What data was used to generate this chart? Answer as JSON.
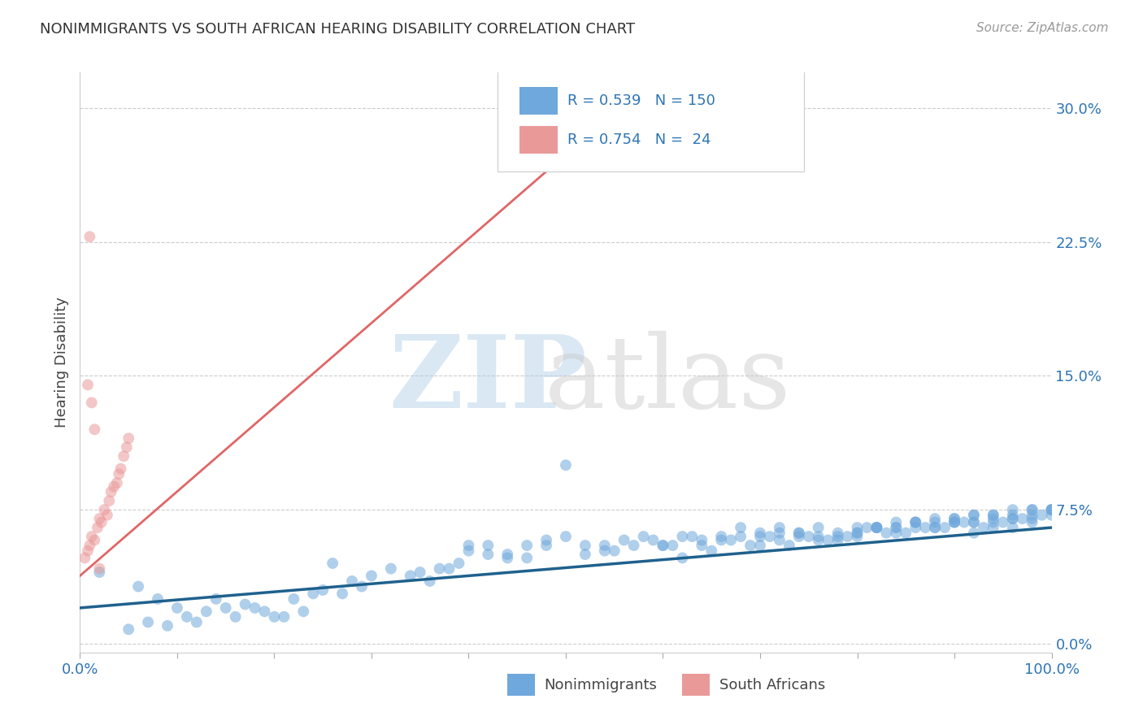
{
  "title": "NONIMMIGRANTS VS SOUTH AFRICAN HEARING DISABILITY CORRELATION CHART",
  "source": "Source: ZipAtlas.com",
  "ylabel": "Hearing Disability",
  "xmin": 0.0,
  "xmax": 1.0,
  "ymin": -0.005,
  "ymax": 0.32,
  "yticks": [
    0.0,
    0.075,
    0.15,
    0.225,
    0.3
  ],
  "ytick_labels": [
    "0.0%",
    "7.5%",
    "15.0%",
    "22.5%",
    "30.0%"
  ],
  "blue_R": 0.539,
  "blue_N": 150,
  "pink_R": 0.754,
  "pink_N": 24,
  "blue_color": "#6fa8dc",
  "pink_color": "#ea9999",
  "blue_line_color": "#1f618d",
  "pink_line_color": "#e06666",
  "axis_color": "#2e75b6",
  "legend_color": "#2e75b6",
  "blue_scatter_x": [
    0.02,
    0.06,
    0.08,
    0.1,
    0.12,
    0.14,
    0.16,
    0.18,
    0.2,
    0.22,
    0.24,
    0.26,
    0.28,
    0.3,
    0.32,
    0.34,
    0.36,
    0.38,
    0.4,
    0.42,
    0.44,
    0.46,
    0.48,
    0.5,
    0.52,
    0.54,
    0.56,
    0.58,
    0.6,
    0.62,
    0.64,
    0.66,
    0.68,
    0.7,
    0.72,
    0.74,
    0.76,
    0.78,
    0.8,
    0.82,
    0.84,
    0.86,
    0.88,
    0.9,
    0.92,
    0.94,
    0.96,
    0.98,
    1.0,
    0.5,
    0.4,
    0.42,
    0.44,
    0.46,
    0.48,
    0.52,
    0.54,
    0.35,
    0.37,
    0.39,
    0.55,
    0.57,
    0.59,
    0.61,
    0.63,
    0.65,
    0.67,
    0.69,
    0.71,
    0.73,
    0.75,
    0.77,
    0.79,
    0.81,
    0.83,
    0.85,
    0.87,
    0.89,
    0.91,
    0.93,
    0.95,
    0.97,
    0.99,
    0.6,
    0.62,
    0.64,
    0.66,
    0.68,
    0.7,
    0.72,
    0.74,
    0.76,
    0.78,
    0.8,
    0.82,
    0.84,
    0.86,
    0.88,
    0.9,
    0.92,
    0.94,
    0.96,
    0.98,
    1.0,
    0.7,
    0.72,
    0.74,
    0.76,
    0.78,
    0.8,
    0.82,
    0.84,
    0.86,
    0.88,
    0.9,
    0.92,
    0.94,
    0.96,
    0.98,
    1.0,
    0.8,
    0.82,
    0.84,
    0.86,
    0.88,
    0.9,
    0.92,
    0.94,
    0.96,
    0.98,
    1.0,
    0.9,
    0.92,
    0.94,
    0.96,
    0.98,
    1.0,
    0.05,
    0.07,
    0.09,
    0.11,
    0.13,
    0.15,
    0.17,
    0.19,
    0.21,
    0.23,
    0.25,
    0.27,
    0.29
  ],
  "blue_scatter_y": [
    0.04,
    0.032,
    0.025,
    0.02,
    0.012,
    0.025,
    0.015,
    0.02,
    0.015,
    0.025,
    0.028,
    0.045,
    0.035,
    0.038,
    0.042,
    0.038,
    0.035,
    0.042,
    0.052,
    0.055,
    0.05,
    0.048,
    0.058,
    0.06,
    0.05,
    0.055,
    0.058,
    0.06,
    0.055,
    0.048,
    0.055,
    0.058,
    0.06,
    0.055,
    0.058,
    0.062,
    0.06,
    0.058,
    0.06,
    0.065,
    0.062,
    0.065,
    0.065,
    0.068,
    0.062,
    0.065,
    0.065,
    0.068,
    0.075,
    0.1,
    0.055,
    0.05,
    0.048,
    0.055,
    0.055,
    0.055,
    0.052,
    0.04,
    0.042,
    0.045,
    0.052,
    0.055,
    0.058,
    0.055,
    0.06,
    0.052,
    0.058,
    0.055,
    0.06,
    0.055,
    0.06,
    0.058,
    0.06,
    0.065,
    0.062,
    0.062,
    0.065,
    0.065,
    0.068,
    0.065,
    0.068,
    0.07,
    0.072,
    0.055,
    0.06,
    0.058,
    0.06,
    0.065,
    0.062,
    0.065,
    0.06,
    0.058,
    0.06,
    0.062,
    0.065,
    0.065,
    0.068,
    0.065,
    0.068,
    0.068,
    0.068,
    0.07,
    0.07,
    0.072,
    0.06,
    0.062,
    0.062,
    0.065,
    0.062,
    0.065,
    0.065,
    0.068,
    0.068,
    0.068,
    0.07,
    0.068,
    0.072,
    0.07,
    0.072,
    0.075,
    0.062,
    0.065,
    0.065,
    0.068,
    0.07,
    0.068,
    0.072,
    0.07,
    0.072,
    0.075,
    0.075,
    0.07,
    0.072,
    0.072,
    0.075,
    0.075,
    0.075,
    0.008,
    0.012,
    0.01,
    0.015,
    0.018,
    0.02,
    0.022,
    0.018,
    0.015,
    0.018,
    0.03,
    0.028,
    0.032
  ],
  "pink_scatter_x": [
    0.005,
    0.008,
    0.01,
    0.012,
    0.015,
    0.018,
    0.02,
    0.022,
    0.025,
    0.028,
    0.03,
    0.032,
    0.035,
    0.038,
    0.04,
    0.042,
    0.045,
    0.048,
    0.05,
    0.015,
    0.01,
    0.008,
    0.012,
    0.02
  ],
  "pink_scatter_y": [
    0.048,
    0.052,
    0.055,
    0.06,
    0.058,
    0.065,
    0.07,
    0.068,
    0.075,
    0.072,
    0.08,
    0.085,
    0.088,
    0.09,
    0.095,
    0.098,
    0.105,
    0.11,
    0.115,
    0.12,
    0.228,
    0.145,
    0.135,
    0.042
  ],
  "blue_line_x": [
    0.0,
    1.0
  ],
  "blue_line_y": [
    0.02,
    0.065
  ],
  "pink_line_x": [
    0.0,
    0.555
  ],
  "pink_line_y": [
    0.038,
    0.3
  ]
}
